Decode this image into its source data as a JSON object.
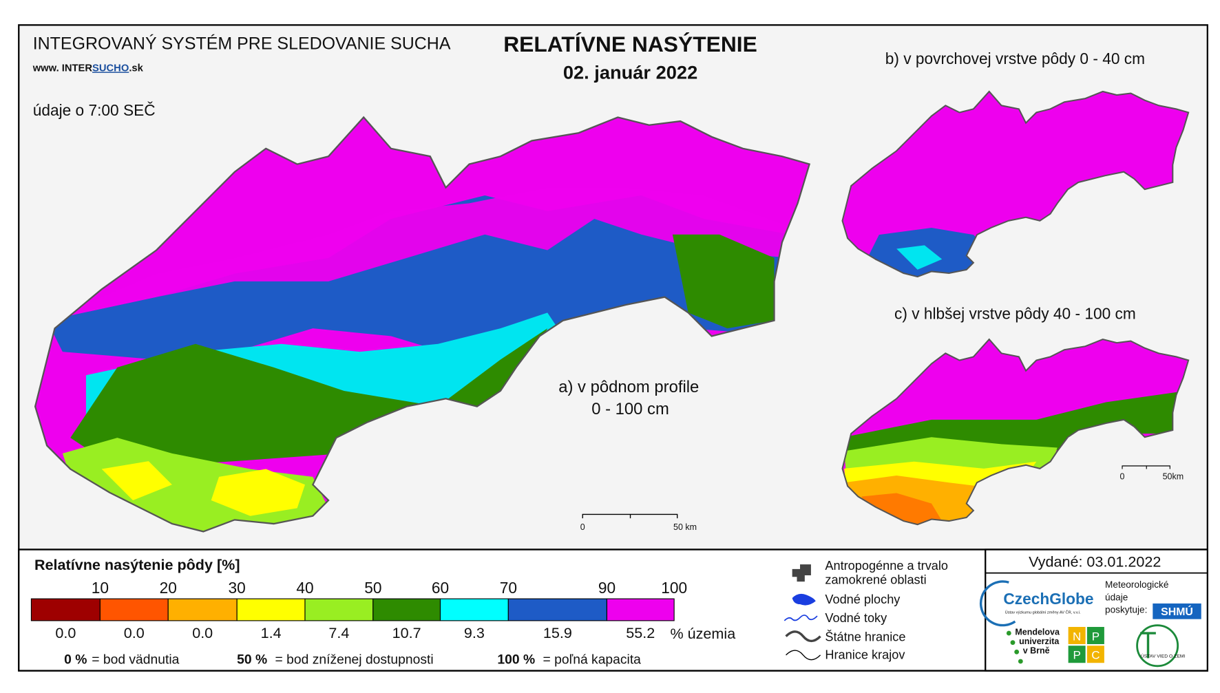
{
  "header": {
    "system": "INTEGROVANÝ SYSTÉM PRE SLEDOVANIE SUCHA",
    "website": [
      "www. INTER",
      "SUCHO",
      ".sk"
    ],
    "time_note": "údaje o 7:00 SEČ",
    "title": "RELATÍVNE NASÝTENIE",
    "date": "02. január 2022"
  },
  "maps": {
    "a": {
      "label": "a) v pôdnom profile",
      "depth": "0 - 100 cm",
      "scale": [
        "0",
        "50 km"
      ]
    },
    "b": {
      "label": "b) v povrchovej vrstve pôdy 0 - 40 cm"
    },
    "c": {
      "label": "c) v hlbšej vrstve pôdy 40 - 100 cm",
      "scale": [
        "0",
        "50km"
      ]
    }
  },
  "legend": {
    "title": "Relatívne nasýtenie pôdy [%]",
    "classes": [
      {
        "upper": 10,
        "color": "#9e0000",
        "share": {
          "value": 0,
          "label": "0.0"
        }
      },
      {
        "upper": 20,
        "color": "#ff5500",
        "share": {
          "value": 0,
          "label": "0.0"
        }
      },
      {
        "upper": 30,
        "color": "#ffb000",
        "share": {
          "value": 0,
          "label": "0.0"
        }
      },
      {
        "upper": 40,
        "color": "#ffff00",
        "share": 1.4
      },
      {
        "upper": 50,
        "color": "#99ee22",
        "share": 7.4
      },
      {
        "upper": 60,
        "color": "#2e8b00",
        "share": 10.7
      },
      {
        "upper": 70,
        "color": "#00ffff",
        "share": 9.3
      },
      {
        "upper": 90,
        "color": "#1e5bc6",
        "share": 15.9
      },
      {
        "upper": 100,
        "color": "#ee00ee",
        "share": 55.2
      }
    ],
    "share_unit": "% územia",
    "notes": [
      {
        "value": "0 %",
        "text": "= bod vädnutia"
      },
      {
        "value": "50 %",
        "text": "= bod zníženej dostupnosti"
      },
      {
        "value": "100 %",
        "text": "= poľná kapacita"
      }
    ]
  },
  "symbols": [
    [
      "Antropogénne a trvalo",
      "zamokrené oblasti"
    ],
    [
      "Vodné plochy"
    ],
    [
      "Vodné toky"
    ],
    [
      "Štátne hranice"
    ],
    [
      "Hranice krajov"
    ]
  ],
  "issued": "Vydané: 03.01.2022",
  "logos": {
    "czechglobe": "CzechGlobe",
    "czechglobe_sub": "Ústav výzkumu globální změny AV ČR, v.v.i.",
    "meteo": [
      "Meteorologické",
      "údaje",
      "poskytuje:"
    ],
    "shmu": "SHMÚ",
    "mendel": [
      "Mendelova",
      "univerzita",
      "v Brně"
    ],
    "nppc": [
      "N",
      "P",
      "P",
      "C"
    ],
    "uvz": "ÚSTAV VIED O ZEMI"
  }
}
